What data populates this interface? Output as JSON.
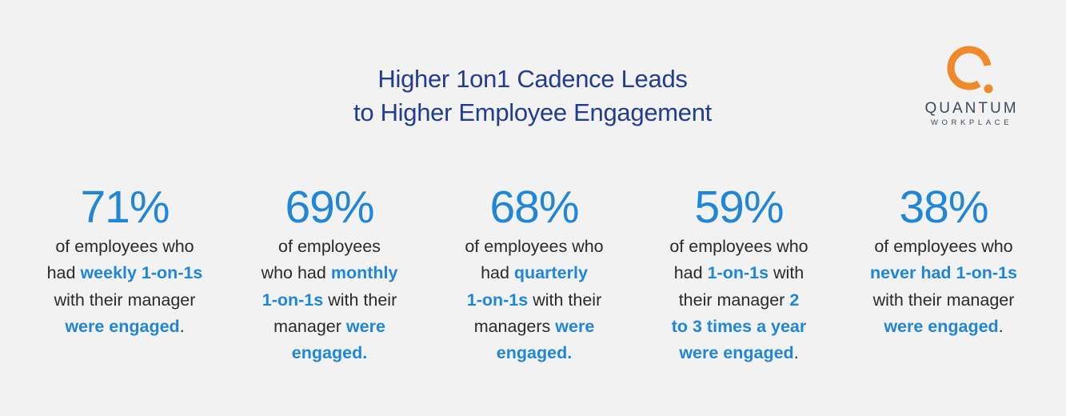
{
  "title": {
    "line1": "Higher 1on1 Cadence Leads",
    "line2": "to Higher Employee Engagement"
  },
  "logo": {
    "name": "QUANTUM",
    "sub": "WORKPLACE",
    "accent_color": "#f0892b"
  },
  "colors": {
    "title": "#223d8f",
    "highlight": "#1f86d8",
    "body_text": "#2a2a2a",
    "background": "#f2f2f2"
  },
  "stats": [
    {
      "value": "71%",
      "lines": [
        [
          {
            "t": "of employees who"
          }
        ],
        [
          {
            "t": "had "
          },
          {
            "t": "weekly 1-on-1s",
            "h": true
          }
        ],
        [
          {
            "t": "with their manager"
          }
        ],
        [
          {
            "t": "were engaged",
            "h": true
          },
          {
            "t": "."
          }
        ]
      ]
    },
    {
      "value": "69%",
      "lines": [
        [
          {
            "t": "of employees"
          }
        ],
        [
          {
            "t": "who had "
          },
          {
            "t": "monthly",
            "h": true
          }
        ],
        [
          {
            "t": "1-on-1s",
            "h": true
          },
          {
            "t": " with their"
          }
        ],
        [
          {
            "t": "manager "
          },
          {
            "t": "were",
            "h": true
          }
        ],
        [
          {
            "t": "engaged.",
            "h": true
          }
        ]
      ]
    },
    {
      "value": "68%",
      "lines": [
        [
          {
            "t": "of employees who"
          }
        ],
        [
          {
            "t": "had "
          },
          {
            "t": "quarterly",
            "h": true
          }
        ],
        [
          {
            "t": "1-on-1s",
            "h": true
          },
          {
            "t": " with their"
          }
        ],
        [
          {
            "t": "managers "
          },
          {
            "t": "were",
            "h": true
          }
        ],
        [
          {
            "t": "engaged.",
            "h": true
          }
        ]
      ]
    },
    {
      "value": "59%",
      "lines": [
        [
          {
            "t": "of employees who"
          }
        ],
        [
          {
            "t": "had "
          },
          {
            "t": "1-on-1s",
            "h": true
          },
          {
            "t": " with"
          }
        ],
        [
          {
            "t": "their manager "
          },
          {
            "t": "2",
            "h": true
          }
        ],
        [
          {
            "t": "to 3 times a year",
            "h": true
          }
        ],
        [
          {
            "t": "were engaged",
            "h": true
          },
          {
            "t": "."
          }
        ]
      ]
    },
    {
      "value": "38%",
      "lines": [
        [
          {
            "t": "of employees who"
          }
        ],
        [
          {
            "t": "never had 1-on-1s",
            "h": true
          }
        ],
        [
          {
            "t": "with their manager"
          }
        ],
        [
          {
            "t": "were engaged",
            "h": true
          },
          {
            "t": "."
          }
        ]
      ]
    }
  ]
}
